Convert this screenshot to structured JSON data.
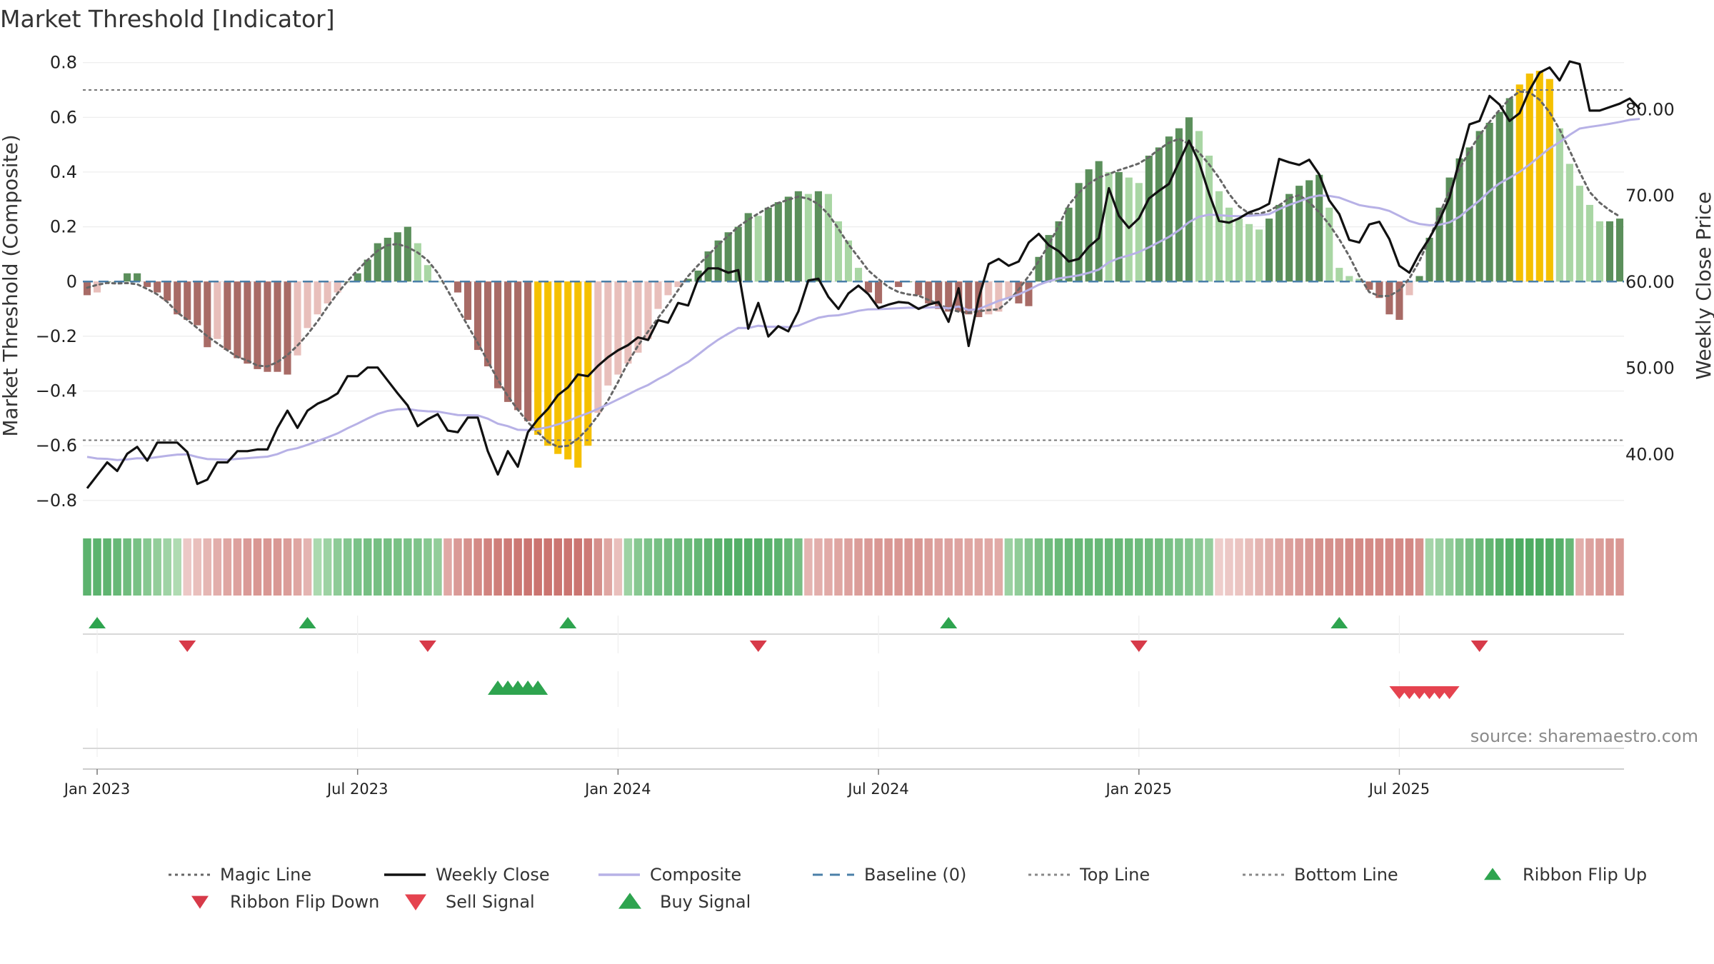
{
  "colors": {
    "bar_pos_strong": "#5b8f5b",
    "bar_pos_weak": "#a9d6a4",
    "bar_neg_strong": "#a86b66",
    "bar_neg_weak": "#e8bfbb",
    "bar_extreme": "#f5c000",
    "magic_line": "#666666",
    "weekly_close": "#111111",
    "composite": "#b7b1e6",
    "baseline": "#4a7fa8",
    "threshold_lines": "#777777",
    "signal_up": "#2ea44f",
    "signal_down": "#d73a49",
    "sell_signal": "#e5434f"
  },
  "chart_data": {
    "type": "bar",
    "title": "Market Threshold [Indicator]",
    "ylabel": "Market Threshold (Composite)",
    "y2label": "Weekly Close Price",
    "ylim": [
      -0.85,
      0.82
    ],
    "y2lim": [
      33,
      86
    ],
    "y_ticks": [
      0.8,
      0.6,
      0.4,
      0.2,
      0,
      -0.2,
      -0.4,
      -0.6,
      -0.8
    ],
    "y_tick_labels": [
      "0.8",
      "0.6",
      "0.4",
      "0.2",
      "0",
      "−0.2",
      "−0.4",
      "−0.6",
      "−0.8"
    ],
    "y2_ticks": [
      80,
      70,
      60,
      50,
      40
    ],
    "y2_tick_labels": [
      "80.00",
      "70.00",
      "60.00",
      "50.00",
      "40.00"
    ],
    "x_tick_labels": [
      "Jan 2023",
      "Jul 2023",
      "Jan 2024",
      "Jul 2024",
      "Jan 2025",
      "Jul 2025"
    ],
    "x_tick_weeks": [
      1,
      27,
      53,
      79,
      105,
      131
    ],
    "top_line": 0.7,
    "bottom_line": -0.58,
    "baseline": 0,
    "histogram": [
      -0.05,
      -0.04,
      0.0,
      0.0,
      0.03,
      0.03,
      -0.02,
      -0.04,
      -0.07,
      -0.12,
      -0.14,
      -0.16,
      -0.24,
      -0.21,
      -0.25,
      -0.28,
      -0.3,
      -0.32,
      -0.33,
      -0.33,
      -0.34,
      -0.27,
      -0.17,
      -0.12,
      -0.08,
      -0.04,
      0.0,
      0.03,
      0.08,
      0.14,
      0.16,
      0.18,
      0.2,
      0.14,
      0.06,
      0.0,
      0.0,
      -0.04,
      -0.14,
      -0.25,
      -0.31,
      -0.39,
      -0.44,
      -0.47,
      -0.51,
      -0.56,
      -0.6,
      -0.63,
      -0.65,
      -0.68,
      -0.6,
      -0.48,
      -0.38,
      -0.34,
      -0.3,
      -0.26,
      -0.21,
      -0.1,
      -0.05,
      -0.02,
      0.01,
      0.04,
      0.11,
      0.15,
      0.18,
      0.2,
      0.25,
      0.24,
      0.27,
      0.29,
      0.31,
      0.33,
      0.32,
      0.33,
      0.32,
      0.22,
      0.15,
      0.05,
      -0.04,
      -0.08,
      0.0,
      -0.02,
      0.0,
      -0.05,
      -0.08,
      -0.1,
      -0.11,
      -0.11,
      -0.12,
      -0.13,
      -0.12,
      -0.11,
      -0.06,
      -0.08,
      -0.09,
      0.09,
      0.17,
      0.22,
      0.27,
      0.36,
      0.41,
      0.44,
      0.4,
      0.4,
      0.38,
      0.36,
      0.46,
      0.49,
      0.53,
      0.56,
      0.6,
      0.55,
      0.46,
      0.33,
      0.27,
      0.23,
      0.21,
      0.19,
      0.23,
      0.28,
      0.32,
      0.35,
      0.37,
      0.39,
      0.27,
      0.05,
      0.02,
      0.01,
      -0.03,
      -0.06,
      -0.12,
      -0.14,
      -0.05,
      0.02,
      0.16,
      0.27,
      0.38,
      0.45,
      0.49,
      0.55,
      0.58,
      0.62,
      0.67,
      0.72,
      0.76,
      0.77,
      0.74,
      0.56,
      0.43,
      0.35,
      0.28,
      0.22,
      0.22,
      0.23
    ],
    "weekly_close": [
      36,
      37.5,
      39,
      38,
      40,
      40.8,
      39.2,
      41.3,
      41.3,
      41.3,
      40.2,
      36.5,
      37,
      39,
      39,
      40.3,
      40.3,
      40.5,
      40.5,
      43,
      45,
      43,
      45,
      45.8,
      46.3,
      47,
      49,
      49,
      50,
      50,
      48.5,
      47,
      45.6,
      43.2,
      44,
      44.6,
      42.7,
      42.5,
      44.2,
      44.2,
      40.3,
      37.6,
      40.3,
      38.5,
      42.5,
      44,
      45.2,
      46.8,
      47.7,
      49.2,
      49,
      50.2,
      51.2,
      52,
      52.6,
      53.5,
      53.2,
      55.5,
      55.2,
      57.5,
      57.2,
      60.3,
      61.5,
      61.5,
      61,
      61.3,
      54.5,
      57.5,
      53.6,
      54.8,
      54.2,
      56.5,
      60.1,
      60.3,
      58.2,
      56.8,
      58.6,
      59.5,
      58.5,
      56.9,
      57.3,
      57.6,
      57.5,
      56.8,
      57.3,
      57.6,
      55.3,
      59.2,
      52.5,
      58,
      62,
      62.6,
      61.8,
      62.3,
      64.5,
      65.5,
      64.2,
      63.5,
      62.3,
      62.6,
      64,
      65,
      70.8,
      67.6,
      66.2,
      67.3,
      69.6,
      70.5,
      71.3,
      73.8,
      76.3,
      73.8,
      70.2,
      67,
      66.8,
      67.3,
      68,
      68.4,
      69,
      74.2,
      73.8,
      73.5,
      74.1,
      72.4,
      69.4,
      67.8,
      64.8,
      64.5,
      66.6,
      66.9,
      64.9,
      61.8,
      61,
      63.2,
      65,
      67.1,
      69.7,
      74,
      78.2,
      78.6,
      81.5,
      80.5,
      78.6,
      79.5,
      82.2,
      84.2,
      84.8,
      83.3,
      85.5,
      85.2,
      79.8,
      79.8,
      80.2,
      80.6,
      81.2,
      80
    ]
  },
  "ribbon_values": [
    0.8,
    0.8,
    0.78,
    0.72,
    0.66,
    0.6,
    0.5,
    0.42,
    0.33,
    0.22,
    -0.12,
    -0.2,
    -0.28,
    -0.35,
    -0.42,
    -0.46,
    -0.52,
    -0.55,
    -0.55,
    -0.54,
    -0.5,
    -0.42,
    -0.3,
    0.25,
    0.35,
    0.45,
    0.52,
    0.58,
    0.62,
    0.62,
    0.62,
    0.6,
    0.58,
    0.56,
    0.5,
    0.42,
    -0.4,
    -0.52,
    -0.6,
    -0.66,
    -0.72,
    -0.76,
    -0.8,
    -0.82,
    -0.84,
    -0.85,
    -0.85,
    -0.84,
    -0.84,
    -0.84,
    -0.8,
    -0.62,
    -0.42,
    -0.2,
    0.35,
    0.5,
    0.58,
    0.62,
    0.66,
    0.68,
    0.7,
    0.74,
    0.78,
    0.82,
    0.86,
    0.86,
    0.86,
    0.84,
    0.82,
    0.8,
    0.72,
    0.62,
    -0.3,
    -0.35,
    -0.38,
    -0.42,
    -0.46,
    -0.5,
    -0.52,
    -0.55,
    -0.55,
    -0.55,
    -0.55,
    -0.55,
    -0.5,
    -0.46,
    -0.45,
    -0.44,
    -0.42,
    -0.42,
    -0.4,
    -0.38,
    0.36,
    0.44,
    0.52,
    0.6,
    0.66,
    0.7,
    0.72,
    0.72,
    0.72,
    0.72,
    0.72,
    0.72,
    0.7,
    0.68,
    0.66,
    0.64,
    0.6,
    0.56,
    0.52,
    0.46,
    0.4,
    -0.08,
    -0.12,
    -0.16,
    -0.22,
    -0.3,
    -0.36,
    -0.42,
    -0.48,
    -0.52,
    -0.56,
    -0.6,
    -0.62,
    -0.62,
    -0.66,
    -0.66,
    -0.66,
    -0.66,
    -0.66,
    -0.66,
    -0.68,
    -0.6,
    0.3,
    0.36,
    0.44,
    0.55,
    0.62,
    0.7,
    0.76,
    0.82,
    0.86,
    0.9,
    0.9,
    0.9,
    0.88,
    0.84,
    0.72,
    -0.35,
    -0.45,
    -0.5,
    -0.55,
    -0.55
  ],
  "ribbon_flip_up_weeks": [
    1,
    22,
    48,
    86,
    125
  ],
  "ribbon_flip_down_weeks": [
    10,
    34,
    67,
    105,
    139
  ],
  "buy_signal_weeks": [
    41,
    42,
    43,
    44,
    45
  ],
  "sell_signal_weeks": [
    131,
    132,
    133,
    134,
    135,
    136
  ],
  "axis_text": {
    "title": "Market Threshold [Indicator]",
    "ylabel": "Market Threshold (Composite)",
    "y2label": "Weekly Close Price",
    "source": "source: sharemaestro.com"
  },
  "legend": [
    {
      "label": "Magic Line",
      "kind": "dotted-line",
      "color": "#666666"
    },
    {
      "label": "Weekly Close",
      "kind": "solid-line",
      "color": "#111111"
    },
    {
      "label": "Composite",
      "kind": "solid-line",
      "color": "#b7b1e6"
    },
    {
      "label": "Baseline (0)",
      "kind": "dashed-line",
      "color": "#4a7fa8"
    },
    {
      "label": "Top Line",
      "kind": "dotted-line",
      "color": "#888888"
    },
    {
      "label": "Bottom Line",
      "kind": "dotted-line",
      "color": "#888888"
    },
    {
      "label": "Ribbon Flip Up",
      "kind": "triangle-up",
      "color": "#2ea44f"
    },
    {
      "label": "Ribbon Flip Down",
      "kind": "triangle-down",
      "color": "#d73a49"
    },
    {
      "label": "Sell Signal",
      "kind": "triangle-down",
      "color": "#e5434f"
    },
    {
      "label": "Buy Signal",
      "kind": "triangle-up",
      "color": "#2ea44f"
    }
  ]
}
